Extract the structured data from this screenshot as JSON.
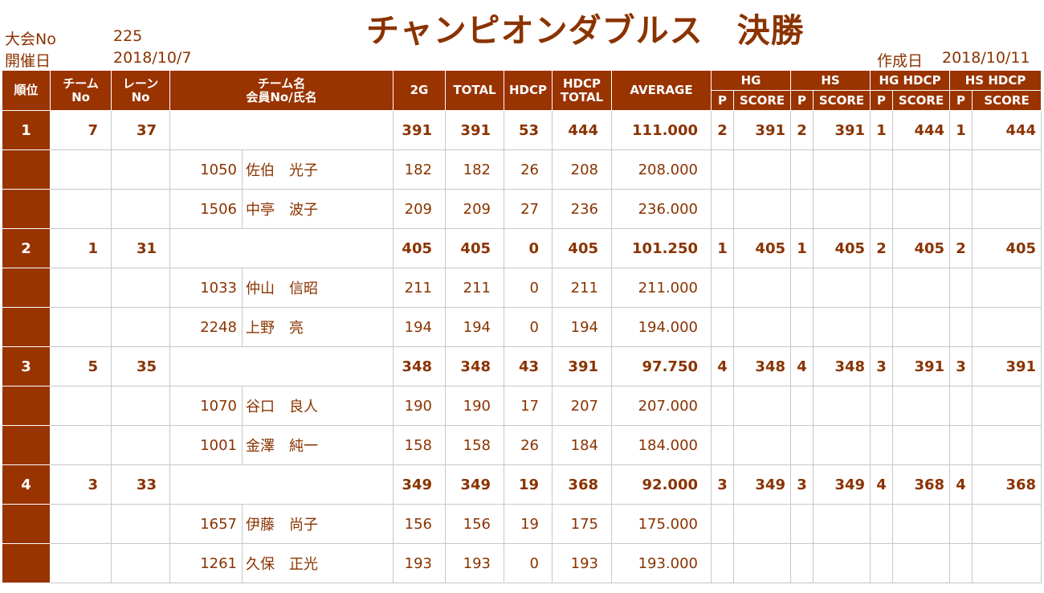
{
  "header": {
    "tournament_label": "大会No",
    "tournament_no": "225",
    "date_label": "開催日",
    "date": "2018/10/7",
    "title": "チャンピオンダブルス　決勝",
    "created_label": "作成日",
    "created_date": "2018/10/11"
  },
  "columns": {
    "rank": "順位",
    "team_no_1": "チーム",
    "team_no_2": "No",
    "lane_no_1": "レーン",
    "lane_no_2": "No",
    "team_name_1": "チーム名",
    "team_name_2": "会員No/氏名",
    "g2": "2G",
    "total": "TOTAL",
    "hdcp": "HDCP",
    "hdcp_total_1": "HDCP",
    "hdcp_total_2": "TOTAL",
    "average": "AVERAGE",
    "hg": "HG",
    "hs": "HS",
    "hg_hdcp": "HG HDCP",
    "hs_hdcp": "HS HDCP",
    "p": "P",
    "score": "SCORE"
  },
  "teams": [
    {
      "rank": "1",
      "team_no": "7",
      "lane_no": "37",
      "g2": "391",
      "total": "391",
      "hdcp": "53",
      "hdcp_total": "444",
      "average": "111.000",
      "hg_p": "2",
      "hg_score": "391",
      "hs_p": "2",
      "hs_score": "391",
      "hgh_p": "1",
      "hgh_score": "444",
      "hsh_p": "1",
      "hsh_score": "444",
      "members": [
        {
          "no": "1050",
          "name": "佐伯　光子",
          "g2": "182",
          "total": "182",
          "hdcp": "26",
          "hdcp_total": "208",
          "average": "208.000"
        },
        {
          "no": "1506",
          "name": "中亭　波子",
          "g2": "209",
          "total": "209",
          "hdcp": "27",
          "hdcp_total": "236",
          "average": "236.000"
        }
      ]
    },
    {
      "rank": "2",
      "team_no": "1",
      "lane_no": "31",
      "g2": "405",
      "total": "405",
      "hdcp": "0",
      "hdcp_total": "405",
      "average": "101.250",
      "hg_p": "1",
      "hg_score": "405",
      "hs_p": "1",
      "hs_score": "405",
      "hgh_p": "2",
      "hgh_score": "405",
      "hsh_p": "2",
      "hsh_score": "405",
      "members": [
        {
          "no": "1033",
          "name": "仲山　信昭",
          "g2": "211",
          "total": "211",
          "hdcp": "0",
          "hdcp_total": "211",
          "average": "211.000"
        },
        {
          "no": "2248",
          "name": "上野　亮",
          "g2": "194",
          "total": "194",
          "hdcp": "0",
          "hdcp_total": "194",
          "average": "194.000"
        }
      ]
    },
    {
      "rank": "3",
      "team_no": "5",
      "lane_no": "35",
      "g2": "348",
      "total": "348",
      "hdcp": "43",
      "hdcp_total": "391",
      "average": "97.750",
      "hg_p": "4",
      "hg_score": "348",
      "hs_p": "4",
      "hs_score": "348",
      "hgh_p": "3",
      "hgh_score": "391",
      "hsh_p": "3",
      "hsh_score": "391",
      "members": [
        {
          "no": "1070",
          "name": "谷口　良人",
          "g2": "190",
          "total": "190",
          "hdcp": "17",
          "hdcp_total": "207",
          "average": "207.000"
        },
        {
          "no": "1001",
          "name": "金澤　純一",
          "g2": "158",
          "total": "158",
          "hdcp": "26",
          "hdcp_total": "184",
          "average": "184.000"
        }
      ]
    },
    {
      "rank": "4",
      "team_no": "3",
      "lane_no": "33",
      "g2": "349",
      "total": "349",
      "hdcp": "19",
      "hdcp_total": "368",
      "average": "92.000",
      "hg_p": "3",
      "hg_score": "349",
      "hs_p": "3",
      "hs_score": "349",
      "hgh_p": "4",
      "hgh_score": "368",
      "hsh_p": "4",
      "hsh_score": "368",
      "members": [
        {
          "no": "1657",
          "name": "伊藤　尚子",
          "g2": "156",
          "total": "156",
          "hdcp": "19",
          "hdcp_total": "175",
          "average": "175.000"
        },
        {
          "no": "1261",
          "name": "久保　正光",
          "g2": "193",
          "total": "193",
          "hdcp": "0",
          "hdcp_total": "193",
          "average": "193.000"
        }
      ]
    }
  ]
}
